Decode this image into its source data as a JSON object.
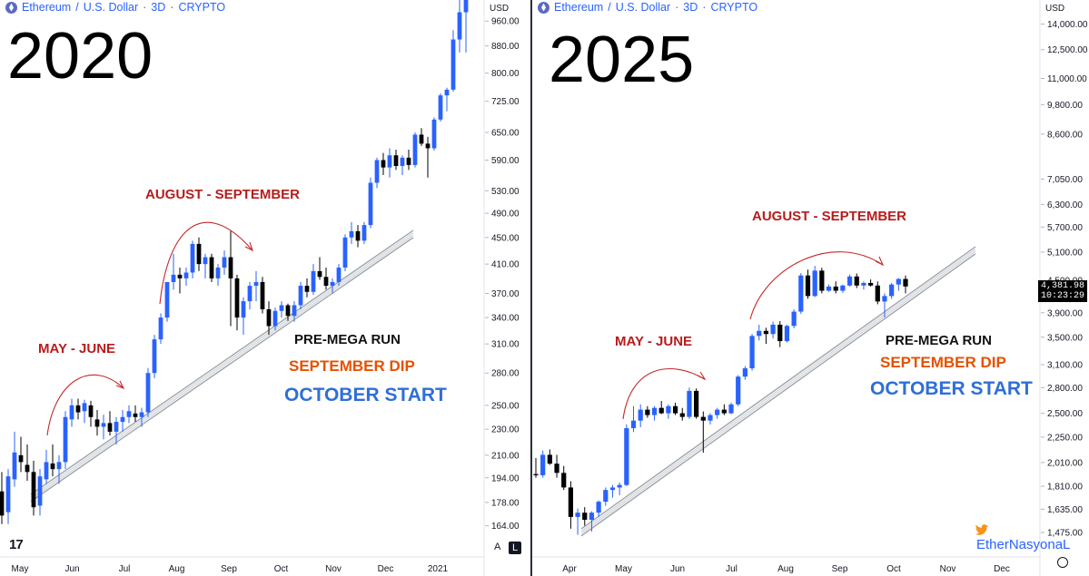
{
  "chart_data": [
    {
      "type": "candlestick",
      "panel": "left",
      "header": [
        "Ethereum",
        "U.S. Dollar",
        "3D",
        "CRYPTO"
      ],
      "big_label": "2020",
      "currency_label": "USD",
      "y_scale": "log",
      "ylim": [
        148,
        1040
      ],
      "y_ticks": [
        "960.00",
        "880.00",
        "800.00",
        "725.00",
        "650.00",
        "590.00",
        "530.00",
        "490.00",
        "450.00",
        "410.00",
        "370.00",
        "340.00",
        "310.00",
        "280.00",
        "250.00",
        "230.00",
        "210.00",
        "194.00",
        "178.00",
        "164.00"
      ],
      "x_ticks": [
        "May",
        "Jun",
        "Jul",
        "Aug",
        "Sep",
        "Oct",
        "Nov",
        "Dec",
        "2021"
      ],
      "candles": [
        [
          185,
          198,
          165,
          170
        ],
        [
          172,
          200,
          165,
          195
        ],
        [
          193,
          228,
          188,
          212
        ],
        [
          210,
          224,
          198,
          205
        ],
        [
          203,
          218,
          192,
          198
        ],
        [
          198,
          206,
          170,
          175
        ],
        [
          176,
          200,
          170,
          195
        ],
        [
          193,
          214,
          190,
          205
        ],
        [
          204,
          218,
          195,
          200
        ],
        [
          200,
          210,
          190,
          205
        ],
        [
          205,
          245,
          200,
          240
        ],
        [
          238,
          256,
          232,
          250
        ],
        [
          250,
          256,
          238,
          244
        ],
        [
          245,
          255,
          235,
          252
        ],
        [
          250,
          254,
          232,
          240
        ],
        [
          238,
          246,
          225,
          232
        ],
        [
          232,
          242,
          222,
          235
        ],
        [
          235,
          245,
          225,
          228
        ],
        [
          228,
          240,
          218,
          236
        ],
        [
          236,
          246,
          228,
          240
        ],
        [
          240,
          250,
          235,
          245
        ],
        [
          243,
          250,
          236,
          240
        ],
        [
          240,
          248,
          232,
          244
        ],
        [
          244,
          285,
          240,
          280
        ],
        [
          280,
          320,
          275,
          315
        ],
        [
          315,
          345,
          310,
          340
        ],
        [
          340,
          385,
          335,
          385
        ],
        [
          385,
          425,
          375,
          395
        ],
        [
          395,
          405,
          370,
          390
        ],
        [
          390,
          405,
          380,
          398
        ],
        [
          398,
          445,
          390,
          440
        ],
        [
          440,
          450,
          400,
          410
        ],
        [
          410,
          425,
          390,
          420
        ],
        [
          420,
          425,
          385,
          390
        ],
        [
          390,
          410,
          380,
          405
        ],
        [
          405,
          430,
          395,
          420
        ],
        [
          420,
          460,
          330,
          390
        ],
        [
          390,
          395,
          325,
          340
        ],
        [
          340,
          365,
          320,
          360
        ],
        [
          360,
          385,
          350,
          380
        ],
        [
          380,
          400,
          360,
          385
        ],
        [
          385,
          392,
          345,
          350
        ],
        [
          350,
          360,
          320,
          330
        ],
        [
          330,
          352,
          325,
          348
        ],
        [
          348,
          360,
          340,
          355
        ],
        [
          355,
          357,
          336,
          342
        ],
        [
          342,
          360,
          335,
          355
        ],
        [
          355,
          385,
          350,
          380
        ],
        [
          380,
          390,
          365,
          372
        ],
        [
          372,
          410,
          368,
          400
        ],
        [
          400,
          420,
          388,
          392
        ],
        [
          392,
          405,
          375,
          380
        ],
        [
          380,
          390,
          370,
          385
        ],
        [
          385,
          410,
          380,
          405
        ],
        [
          405,
          455,
          400,
          450
        ],
        [
          450,
          475,
          440,
          460
        ],
        [
          460,
          470,
          435,
          445
        ],
        [
          445,
          475,
          440,
          470
        ],
        [
          470,
          555,
          465,
          545
        ],
        [
          545,
          595,
          535,
          590
        ],
        [
          590,
          605,
          560,
          575
        ],
        [
          575,
          615,
          555,
          600
        ],
        [
          600,
          612,
          570,
          578
        ],
        [
          578,
          600,
          560,
          595
        ],
        [
          595,
          612,
          570,
          580
        ],
        [
          580,
          650,
          575,
          645
        ],
        [
          645,
          660,
          620,
          625
        ],
        [
          625,
          640,
          555,
          615
        ],
        [
          615,
          685,
          610,
          680
        ],
        [
          680,
          745,
          675,
          740
        ],
        [
          740,
          760,
          700,
          755
        ],
        [
          755,
          930,
          750,
          900
        ],
        [
          900,
          1040,
          860,
          990
        ],
        [
          990,
          1040,
          860,
          1040
        ]
      ]
    },
    {
      "type": "candlestick",
      "panel": "right",
      "header": [
        "Ethereum",
        "U.S. Dollar",
        "3D",
        "CRYPTO"
      ],
      "big_label": "2025",
      "currency_label": "USD",
      "y_scale": "log",
      "ylim": [
        1400,
        15200
      ],
      "y_ticks": [
        "14,000.00",
        "12,500.00",
        "11,000.00",
        "9,800.00",
        "8,600.00",
        "7,050.00",
        "6,300.00",
        "5,700.00",
        "5,100.00",
        "4,500.00",
        "3,900.00",
        "3,500.00",
        "3,100.00",
        "2,800.00",
        "2,500.00",
        "2,250.00",
        "2,010.00",
        "1,810.00",
        "1,635.00",
        "1,475.00"
      ],
      "x_ticks": [
        "Apr",
        "May",
        "Jun",
        "Jul",
        "Aug",
        "Sep",
        "Oct",
        "Nov",
        "Dec"
      ],
      "last_price": "4,381.98",
      "countdown": "10:23:29",
      "candles": [
        [
          1910,
          2050,
          1880,
          1900
        ],
        [
          1900,
          2120,
          1880,
          2080
        ],
        [
          2080,
          2130,
          1990,
          2000
        ],
        [
          2000,
          2080,
          1880,
          1920
        ],
        [
          1920,
          1980,
          1780,
          1800
        ],
        [
          1800,
          1850,
          1500,
          1580
        ],
        [
          1580,
          1640,
          1460,
          1610
        ],
        [
          1610,
          1650,
          1520,
          1560
        ],
        [
          1560,
          1620,
          1480,
          1610
        ],
        [
          1610,
          1700,
          1580,
          1690
        ],
        [
          1690,
          1800,
          1660,
          1780
        ],
        [
          1780,
          1820,
          1720,
          1800
        ],
        [
          1800,
          1840,
          1740,
          1820
        ],
        [
          1820,
          2380,
          1810,
          2340
        ],
        [
          2340,
          2580,
          2300,
          2420
        ],
        [
          2420,
          2600,
          2350,
          2540
        ],
        [
          2540,
          2580,
          2450,
          2480
        ],
        [
          2480,
          2580,
          2420,
          2560
        ],
        [
          2560,
          2640,
          2490,
          2500
        ],
        [
          2500,
          2600,
          2440,
          2580
        ],
        [
          2580,
          2620,
          2480,
          2500
        ],
        [
          2500,
          2560,
          2420,
          2460
        ],
        [
          2460,
          2800,
          2440,
          2760
        ],
        [
          2760,
          2790,
          2440,
          2460
        ],
        [
          2460,
          2520,
          2100,
          2420
        ],
        [
          2420,
          2500,
          2380,
          2480
        ],
        [
          2480,
          2560,
          2440,
          2540
        ],
        [
          2540,
          2600,
          2480,
          2500
        ],
        [
          2500,
          2620,
          2490,
          2600
        ],
        [
          2600,
          2960,
          2580,
          2940
        ],
        [
          2940,
          3080,
          2900,
          3050
        ],
        [
          3050,
          3550,
          3020,
          3520
        ],
        [
          3520,
          3700,
          3450,
          3600
        ],
        [
          3600,
          3650,
          3400,
          3550
        ],
        [
          3550,
          3750,
          3480,
          3700
        ],
        [
          3700,
          3760,
          3350,
          3440
        ],
        [
          3440,
          3700,
          3420,
          3680
        ],
        [
          3680,
          3960,
          3640,
          3920
        ],
        [
          3920,
          4650,
          3880,
          4600
        ],
        [
          4600,
          4720,
          4150,
          4200
        ],
        [
          4200,
          4800,
          4180,
          4700
        ],
        [
          4700,
          4760,
          4250,
          4300
        ],
        [
          4300,
          4420,
          4280,
          4380
        ],
        [
          4380,
          4480,
          4250,
          4300
        ],
        [
          4300,
          4420,
          4260,
          4400
        ],
        [
          4400,
          4620,
          4380,
          4580
        ],
        [
          4580,
          4640,
          4350,
          4400
        ],
        [
          4400,
          4480,
          4320,
          4450
        ],
        [
          4450,
          4520,
          4380,
          4400
        ],
        [
          4400,
          4480,
          4050,
          4100
        ],
        [
          4100,
          4250,
          3820,
          4200
        ],
        [
          4200,
          4450,
          4150,
          4420
        ],
        [
          4420,
          4550,
          4300,
          4530
        ],
        [
          4530,
          4600,
          4250,
          4382
        ]
      ]
    }
  ],
  "annotations": {
    "left": {
      "may_june": "MAY - JUNE",
      "aug_sep": "AUGUST - SEPTEMBER",
      "pre_mega": "PRE-MEGA RUN",
      "sep_dip": "SEPTEMBER DIP",
      "oct_start": "OCTOBER START"
    },
    "right": {
      "may_june": "MAY - JUNE",
      "aug_sep": "AUGUST - SEPTEMBER",
      "pre_mega": "PRE-MEGA RUN",
      "sep_dip": "SEPTEMBER DIP",
      "oct_start": "OCTOBER START"
    }
  },
  "colors": {
    "up": "#2962ff",
    "down": "#000000",
    "annotation_red": "#b71c1c",
    "annotation_orange": "#e65100",
    "annotation_blue": "#2f6fd6"
  },
  "footer": {
    "tv_logo": "17",
    "scale_a": "A",
    "scale_l": "L",
    "watermark": "EtherNasyonaL"
  }
}
